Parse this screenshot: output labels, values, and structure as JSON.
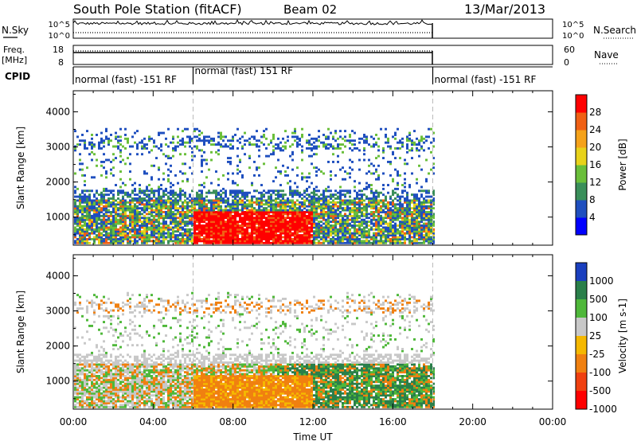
{
  "header": {
    "station": "South Pole Station (fitACF)",
    "beam": "Beam 02",
    "date": "13/Mar/2013"
  },
  "strip_labels": {
    "nsky": "N.Sky",
    "nsearch": "N.Search",
    "freq_line1": "Freq.",
    "freq_line2": "[MHz]",
    "nave": "Nave",
    "cpid": "CPID",
    "nsky_ticks": [
      "10^5",
      "10^0"
    ],
    "nsearch_ticks": [
      "10^5",
      "10^0"
    ],
    "freq_ticks": [
      "18",
      "8"
    ],
    "nave_ticks": [
      "60",
      "0"
    ]
  },
  "cpid_segments": [
    {
      "label": "normal (fast) -151 RF",
      "start": 0,
      "end": 6
    },
    {
      "label": "normal (fast) 151 RF",
      "start": 6,
      "end": 18
    },
    {
      "label": "normal (fast) -151 RF",
      "start": 18,
      "end": 24
    }
  ],
  "chart_data": [
    {
      "type": "heatmap",
      "name": "power",
      "xlabel": "",
      "ylabel": "Slant Range [km]",
      "xlim": [
        0,
        24
      ],
      "ylim": [
        200,
        4600
      ],
      "y_ticks": [
        "1000",
        "2000",
        "3000",
        "4000"
      ],
      "colorbar": {
        "label": "Power [dB]",
        "ticks": [
          "4",
          "8",
          "12",
          "16",
          "20",
          "24",
          "28"
        ],
        "range": [
          0,
          30
        ],
        "colors": [
          "#0000ff",
          "#1f4fbf",
          "#3a8f5a",
          "#6abf3a",
          "#e8d21a",
          "#f5a21a",
          "#f06014",
          "#ff0000"
        ]
      },
      "data_end_hour": 18
    },
    {
      "type": "heatmap",
      "name": "velocity",
      "xlabel": "Time UT",
      "ylabel": "Slant Range [km]",
      "xlim": [
        0,
        24
      ],
      "ylim": [
        200,
        4600
      ],
      "x_ticks": [
        "00:00",
        "04:00",
        "08:00",
        "12:00",
        "16:00",
        "20:00",
        "00:00"
      ],
      "y_ticks": [
        "1000",
        "2000",
        "3000",
        "4000"
      ],
      "colorbar": {
        "label": "Velocity [m s-1]",
        "ticks": [
          "1000",
          "500",
          "100",
          "25",
          "-25",
          "-100",
          "-500",
          "-1000"
        ],
        "colors": [
          "#1a3fbf",
          "#2a7f4a",
          "#4fb83a",
          "#c8c8c8",
          "#f5b800",
          "#f08010",
          "#f04010",
          "#ff0000"
        ]
      },
      "data_end_hour": 18
    }
  ]
}
